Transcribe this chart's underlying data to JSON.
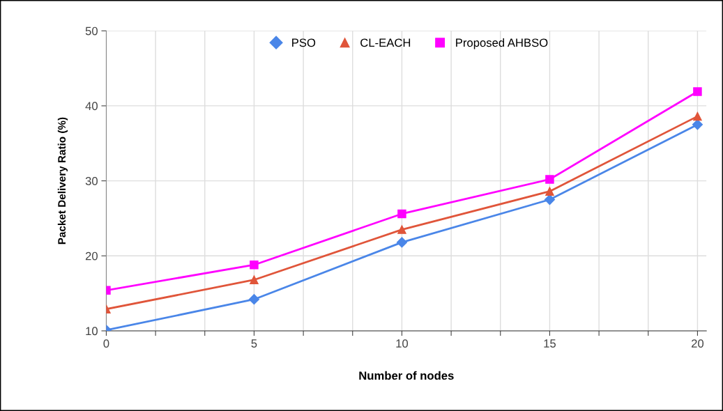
{
  "chart_data": {
    "type": "line",
    "xlabel": "Number of nodes",
    "ylabel": "Packet Delivery Ratio (%)",
    "x": [
      0,
      5,
      10,
      15,
      20
    ],
    "series": [
      {
        "name": "PSO",
        "color": "#4a86e8",
        "marker": "diamond",
        "values": [
          10.1,
          14.2,
          21.8,
          27.5,
          37.5
        ]
      },
      {
        "name": "CL-EACH",
        "color": "#e0553a",
        "marker": "triangle",
        "values": [
          12.9,
          16.8,
          23.5,
          28.6,
          38.6
        ]
      },
      {
        "name": "Proposed AHBSO",
        "color": "#ff00ff",
        "marker": "square",
        "values": [
          15.4,
          18.8,
          25.6,
          30.2,
          41.9
        ]
      }
    ],
    "xlim": [
      0,
      20.3
    ],
    "ylim": [
      10,
      50
    ],
    "xticks": [
      0,
      {
        "value": 1.667,
        "label": null
      },
      {
        "value": 3.333,
        "label": null
      },
      5,
      {
        "value": 6.667,
        "label": null
      },
      {
        "value": 8.333,
        "label": null
      },
      10,
      {
        "value": 11.667,
        "label": null
      },
      {
        "value": 13.333,
        "label": null
      },
      15,
      {
        "value": 16.667,
        "label": null
      },
      {
        "value": 18.333,
        "label": null
      },
      20
    ],
    "yticks": [
      10,
      20,
      30,
      40,
      50
    ],
    "grid": true,
    "legend": "top",
    "line_style": "solid"
  }
}
